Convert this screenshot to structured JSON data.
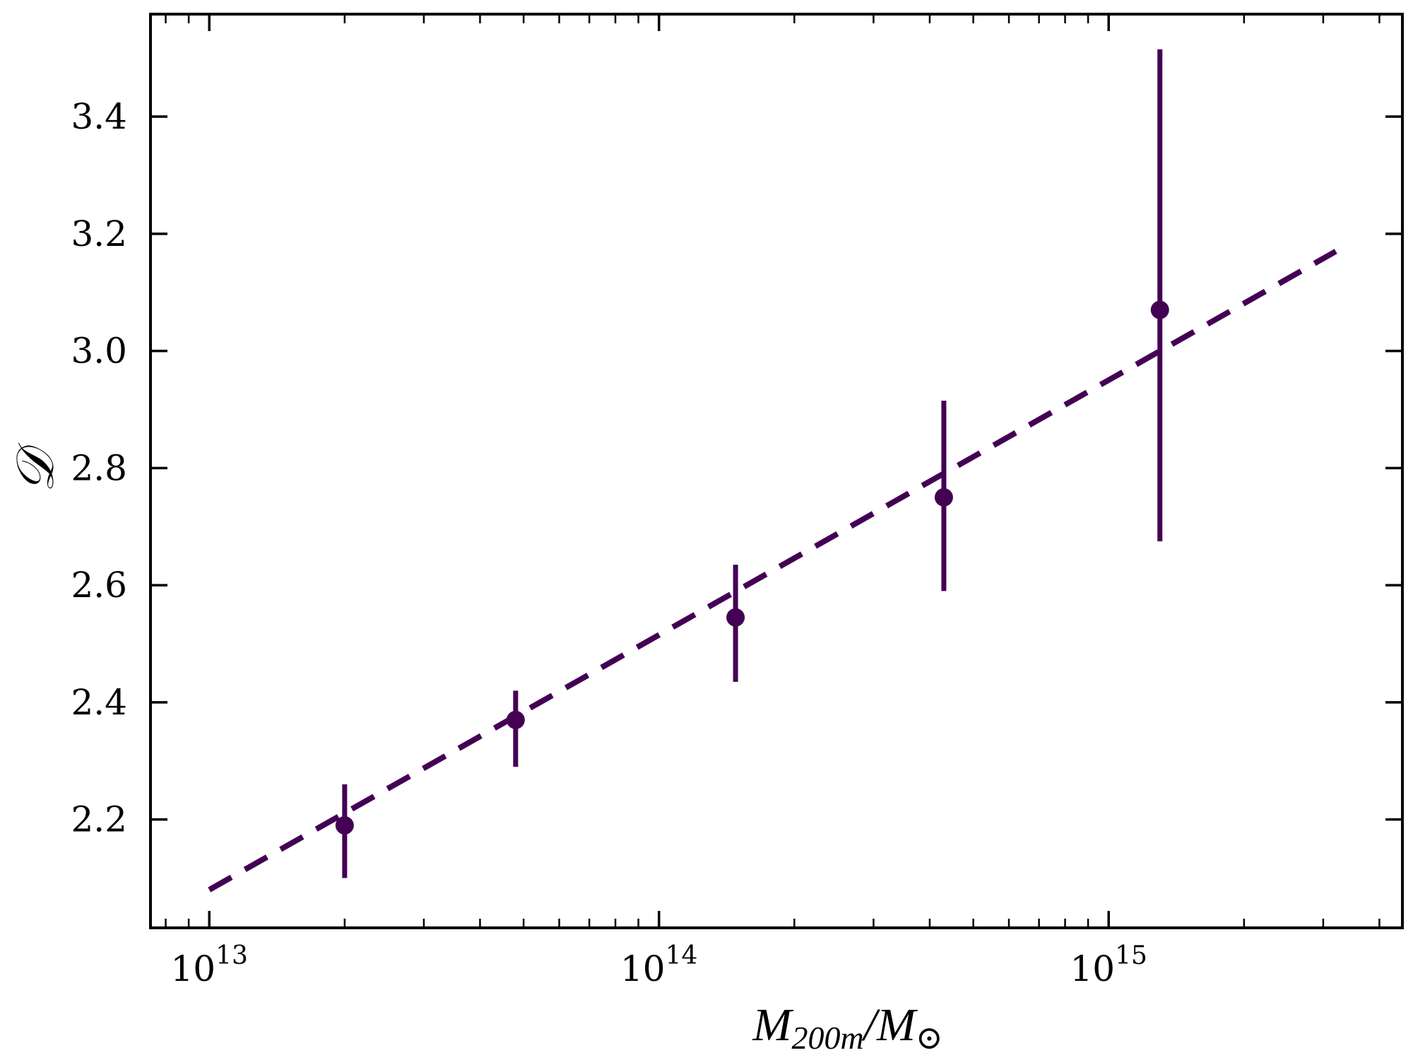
{
  "chart_data": {
    "type": "scatter",
    "xscale": "log",
    "x_ticks": [
      {
        "value": 10000000000000.0,
        "base": "10",
        "exp": "13"
      },
      {
        "value": 100000000000000.0,
        "base": "10",
        "exp": "14"
      },
      {
        "value": 1000000000000000.0,
        "base": "10",
        "exp": "15"
      }
    ],
    "y_ticks": [
      "2.2",
      "2.4",
      "2.6",
      "2.8",
      "3.0",
      "3.2",
      "3.4"
    ],
    "xlim": [
      7400000000000.0,
      4500000000000000.0
    ],
    "ylim": [
      2.015,
      3.575
    ],
    "xlabel": {
      "main": "M",
      "sub": "200m",
      "sep": "/M",
      "sun": "⊙"
    },
    "ylabel": "𝒟",
    "grid": false,
    "colors": {
      "series": "#440154",
      "axes": "#000000"
    },
    "series": [
      {
        "style": "errorbar",
        "points": [
          {
            "x": 20000000000000.0,
            "y": 2.19,
            "ylow": 2.1,
            "yhigh": 2.26
          },
          {
            "x": 48000000000000.0,
            "y": 2.37,
            "ylow": 2.29,
            "yhigh": 2.42
          },
          {
            "x": 148000000000000.0,
            "y": 2.545,
            "ylow": 2.435,
            "yhigh": 2.635
          },
          {
            "x": 430000000000000.0,
            "y": 2.75,
            "ylow": 2.59,
            "yhigh": 2.915
          },
          {
            "x": 1300000000000000.0,
            "y": 3.07,
            "ylow": 2.675,
            "yhigh": 3.515
          }
        ]
      },
      {
        "style": "dashed-fit",
        "points": [
          {
            "x": 10000000000000.0,
            "y": 2.08
          },
          {
            "x": 3200000000000000.0,
            "y": 3.17
          }
        ]
      }
    ]
  }
}
